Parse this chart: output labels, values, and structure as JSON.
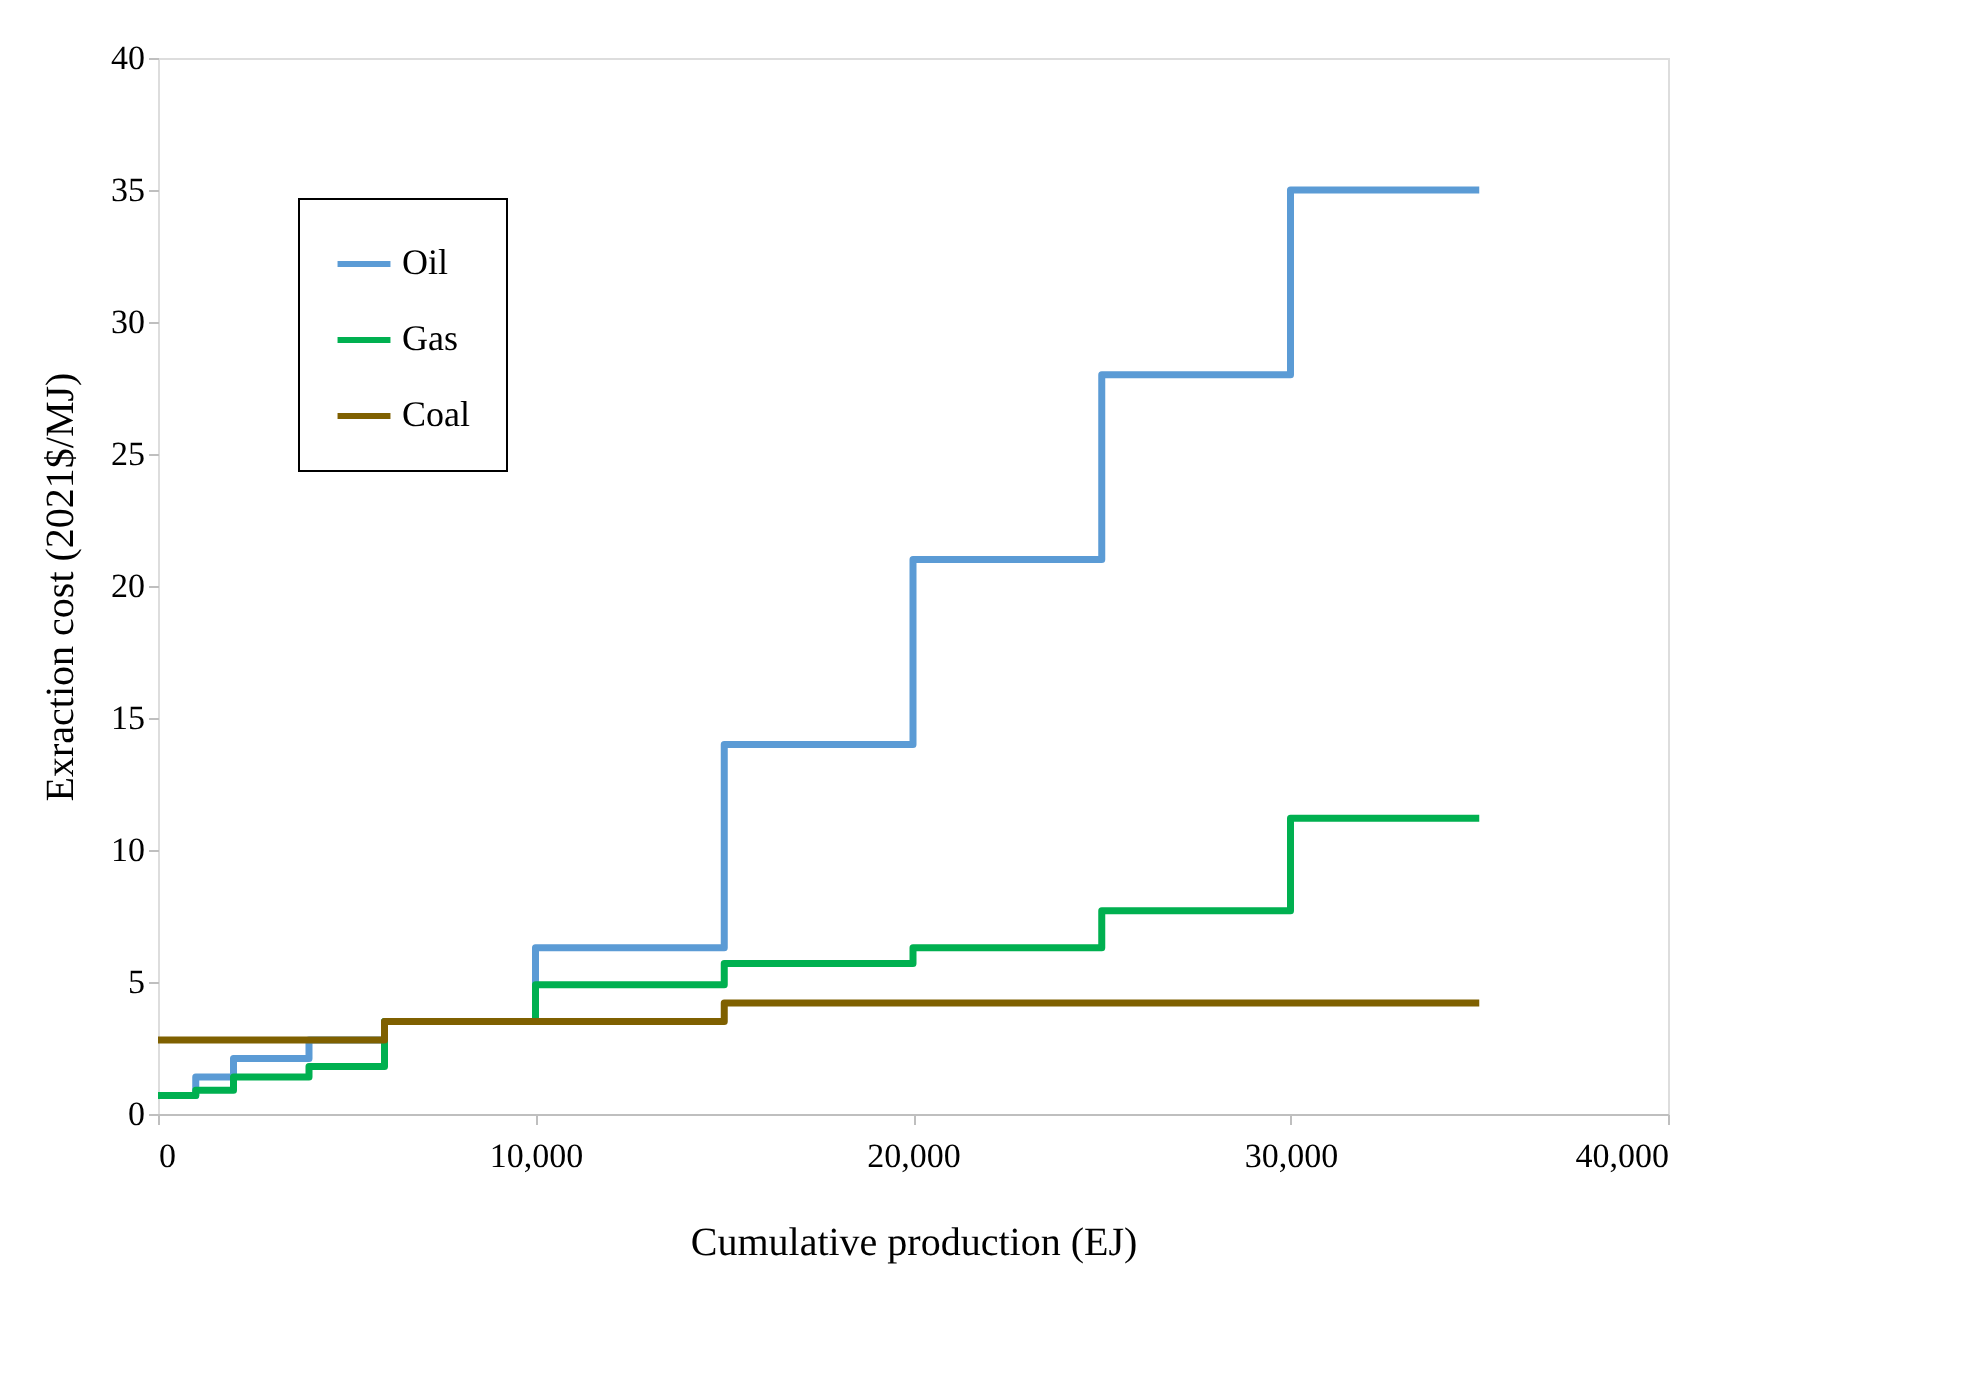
{
  "chart_data": {
    "type": "step",
    "xlabel": "Cumulative production (EJ)",
    "ylabel": "Exraction cost (2021$/MJ)",
    "xlim": [
      0,
      40000
    ],
    "xticks": [
      {
        "value": 0,
        "label": "0"
      },
      {
        "value": 10000,
        "label": "10,000"
      },
      {
        "value": 20000,
        "label": "20,000"
      },
      {
        "value": 30000,
        "label": "30,000"
      },
      {
        "value": 40000,
        "label": "40,000"
      }
    ],
    "ylim": [
      0,
      40
    ],
    "yticks": [
      0,
      5,
      10,
      15,
      20,
      25,
      30,
      35,
      40
    ],
    "grid": false,
    "legend": "top left",
    "marker": "none",
    "line_style": "solid",
    "series": [
      {
        "name": "Oil",
        "color": "#5b9bd5",
        "x": [
          0,
          1000,
          2000,
          4000,
          6000,
          10000,
          15000,
          20000,
          25000,
          30000,
          35000
        ],
        "values": [
          0.7,
          1.4,
          2.1,
          2.8,
          3.5,
          6.3,
          14,
          21,
          28,
          35,
          35
        ]
      },
      {
        "name": "Gas",
        "color": "#00b050",
        "x": [
          0,
          1000,
          2000,
          4000,
          6000,
          10000,
          15000,
          20000,
          25000,
          30000,
          35000
        ],
        "values": [
          0.7,
          0.9,
          1.4,
          1.8,
          3.5,
          4.9,
          5.7,
          6.3,
          7.7,
          11.2,
          11.2
        ]
      },
      {
        "name": "Coal",
        "color": "#7f6000",
        "x": [
          0,
          6000,
          15000,
          35000
        ],
        "values": [
          2.8,
          3.5,
          4.2,
          4.2
        ]
      }
    ]
  }
}
